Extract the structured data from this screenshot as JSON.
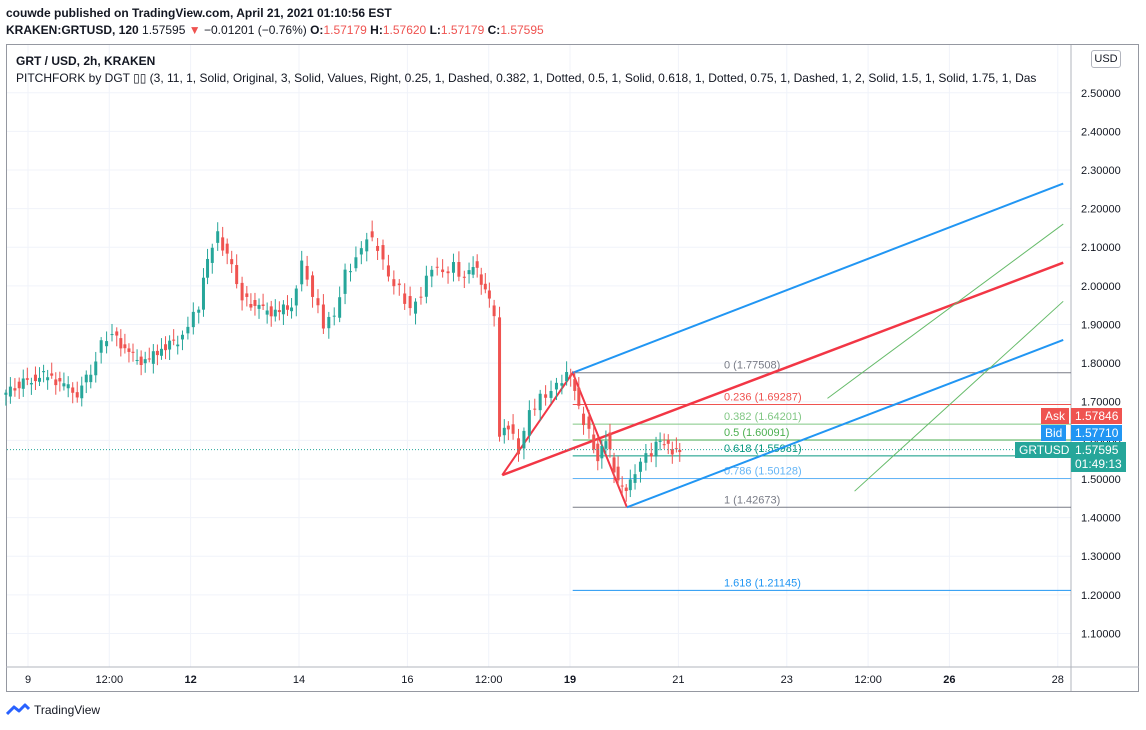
{
  "header": {
    "publisher_line": "couwde published on TradingView.com, April 21, 2021 01:10:56 EST",
    "symbol": "KRAKEN:GRTUSD, 120",
    "last": "1.57595",
    "change_arrow": "▼",
    "change": "−0.01201 (−0.76%)",
    "o_label": "O:",
    "o_value": "1.57179",
    "h_label": "H:",
    "h_value": "1.57620",
    "l_label": "L:",
    "l_value": "1.57179",
    "c_label": "C:",
    "c_value": "1.57595"
  },
  "legend": {
    "title": "GRT / USD, 2h, KRAKEN",
    "indicator": "PITCHFORK by DGT ▯▯ (3, 11, 1, Solid, Original, 3, Solid, Values, Right, 0.25, 1, Dashed, 0.382, 1, Dotted, 0.5, 1, Solid, 0.618, 1, Dotted, 0.75, 1, Dashed, 1, 2, Solid, 1.5, 1, Solid, 1.75, 1, Das"
  },
  "currency": "USD",
  "footer": {
    "brand": "TradingView"
  },
  "colors": {
    "up": "#26a69a",
    "down": "#ef5350",
    "median": "#f23645",
    "outer": "#2196f3",
    "inner": "#66bb6a"
  },
  "tags": {
    "ask": {
      "label": "Ask",
      "value": "1.57846",
      "color": "#ef5350"
    },
    "bid": {
      "label": "Bid",
      "value": "1.57710",
      "color": "#2196f3"
    },
    "last": {
      "label": "GRTUSD",
      "value": "1.57595",
      "countdown": "01:49:13",
      "color": "#26a69a"
    }
  },
  "chart_data": {
    "type": "candlestick",
    "ylim": [
      1.0,
      2.6
    ],
    "y_ticks": [
      "2.50000",
      "2.40000",
      "2.30000",
      "2.20000",
      "2.10000",
      "2.00000",
      "1.90000",
      "1.80000",
      "1.70000",
      "1.60000",
      "1.50000",
      "1.40000",
      "1.30000",
      "1.20000",
      "1.10000"
    ],
    "x_ticks": [
      {
        "label": "9",
        "bold": false,
        "day": 9
      },
      {
        "label": "12:00",
        "bold": false,
        "day": 10.5
      },
      {
        "label": "12",
        "bold": true,
        "day": 12
      },
      {
        "label": "14",
        "bold": false,
        "day": 14
      },
      {
        "label": "16",
        "bold": false,
        "day": 16
      },
      {
        "label": "12:00",
        "bold": false,
        "day": 17.5
      },
      {
        "label": "19",
        "bold": true,
        "day": 19
      },
      {
        "label": "21",
        "bold": false,
        "day": 21
      },
      {
        "label": "23",
        "bold": false,
        "day": 23
      },
      {
        "label": "12:00",
        "bold": false,
        "day": 24.5
      },
      {
        "label": "26",
        "bold": true,
        "day": 26
      },
      {
        "label": "28",
        "bold": false,
        "day": 28
      }
    ],
    "close_path": [
      [
        8.55,
        1.71
      ],
      [
        8.8,
        1.74
      ],
      [
        9.1,
        1.76
      ],
      [
        9.4,
        1.77
      ],
      [
        9.7,
        1.74
      ],
      [
        9.95,
        1.72
      ],
      [
        10.2,
        1.78
      ],
      [
        10.4,
        1.85
      ],
      [
        10.6,
        1.88
      ],
      [
        10.9,
        1.82
      ],
      [
        11.2,
        1.8
      ],
      [
        11.5,
        1.84
      ],
      [
        11.8,
        1.86
      ],
      [
        12.0,
        1.9
      ],
      [
        12.2,
        1.95
      ],
      [
        12.35,
        2.07
      ],
      [
        12.55,
        2.13
      ],
      [
        12.8,
        2.05
      ],
      [
        13.0,
        1.97
      ],
      [
        13.3,
        1.94
      ],
      [
        13.6,
        1.93
      ],
      [
        13.9,
        1.95
      ],
      [
        14.1,
        2.06
      ],
      [
        14.3,
        1.98
      ],
      [
        14.5,
        1.9
      ],
      [
        14.7,
        1.92
      ],
      [
        14.9,
        2.03
      ],
      [
        15.1,
        2.07
      ],
      [
        15.3,
        2.13
      ],
      [
        15.5,
        2.1
      ],
      [
        15.7,
        2.02
      ],
      [
        15.9,
        1.99
      ],
      [
        16.1,
        1.94
      ],
      [
        16.3,
        1.98
      ],
      [
        16.5,
        2.05
      ],
      [
        16.7,
        2.03
      ],
      [
        16.9,
        2.05
      ],
      [
        17.1,
        2.02
      ],
      [
        17.25,
        2.06
      ],
      [
        17.4,
        2.01
      ],
      [
        17.55,
        1.96
      ],
      [
        17.65,
        1.93
      ],
      [
        17.75,
        1.62
      ],
      [
        17.9,
        1.64
      ],
      [
        18.1,
        1.57
      ],
      [
        18.3,
        1.67
      ],
      [
        18.5,
        1.71
      ],
      [
        18.7,
        1.73
      ],
      [
        18.9,
        1.76
      ],
      [
        19.05,
        1.77
      ],
      [
        19.2,
        1.68
      ],
      [
        19.4,
        1.62
      ],
      [
        19.55,
        1.55
      ],
      [
        19.7,
        1.61
      ],
      [
        19.85,
        1.52
      ],
      [
        20.0,
        1.47
      ],
      [
        20.15,
        1.49
      ],
      [
        20.35,
        1.55
      ],
      [
        20.55,
        1.57
      ],
      [
        20.7,
        1.6
      ],
      [
        20.85,
        1.58
      ],
      [
        21.0,
        1.57
      ],
      [
        21.05,
        1.576
      ]
    ],
    "pitchfork": {
      "p0": {
        "day": 17.75,
        "price": 1.51
      },
      "p1": {
        "day": 19.05,
        "price": 1.775
      },
      "p2": {
        "day": 20.05,
        "price": 1.4267
      },
      "end_day": 28.1,
      "median_end_price": 2.06,
      "upper_end_price": 2.265,
      "lower_end_price": 1.86,
      "inner_upper_end_price": 2.16,
      "inner_lower_end_price": 1.96
    },
    "fib_levels": [
      {
        "level": "0",
        "text": "0 (1.77508)",
        "price": 1.77508,
        "color": "#787b86"
      },
      {
        "level": "0.236",
        "text": "0.236 (1.69287)",
        "price": 1.69287,
        "color": "#ef5350"
      },
      {
        "level": "0.382",
        "text": "0.382 (1.64201)",
        "price": 1.64201,
        "color": "#81c784"
      },
      {
        "level": "0.5",
        "text": "0.5 (1.60091)",
        "price": 1.60091,
        "color": "#4caf50"
      },
      {
        "level": "0.618",
        "text": "0.618 (1.55981)",
        "price": 1.55981,
        "color": "#089981"
      },
      {
        "level": "0.786",
        "text": "0.786 (1.50128)",
        "price": 1.50128,
        "color": "#64b5f6"
      },
      {
        "level": "1",
        "text": "1 (1.42673)",
        "price": 1.42673,
        "color": "#787b86"
      },
      {
        "level": "1.618",
        "text": "1.618 (1.21145)",
        "price": 1.21145,
        "color": "#2196f3"
      }
    ],
    "fib_start_day": 19.05,
    "last_price": 1.57595
  }
}
